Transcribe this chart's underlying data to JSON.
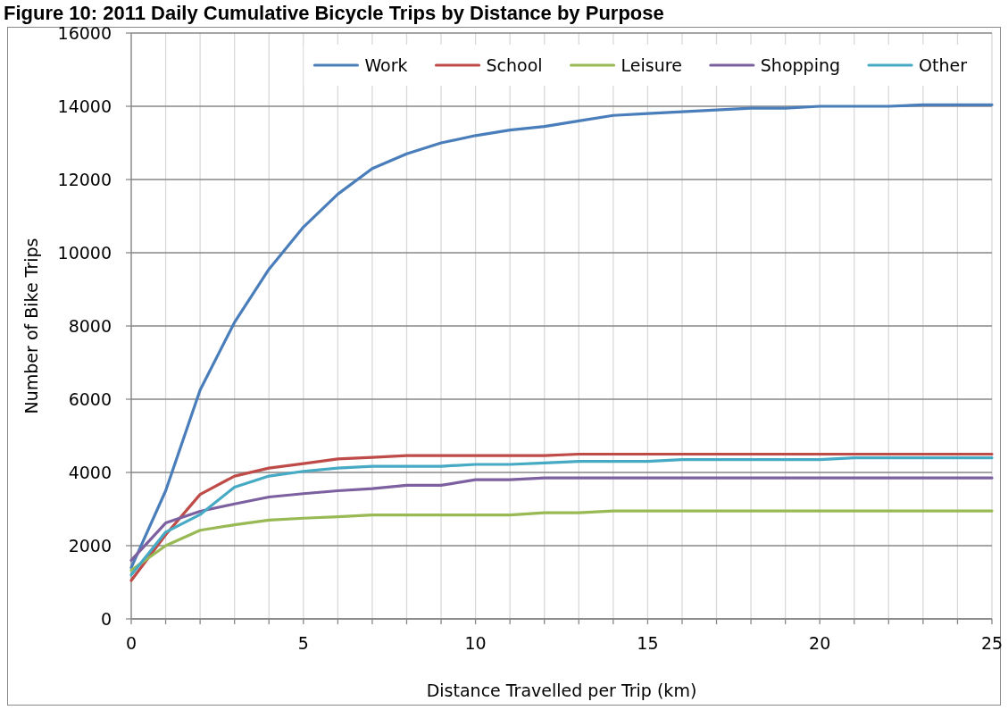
{
  "chart_data": {
    "type": "line",
    "title": "Figure 10: 2011 Daily Cumulative Bicycle Trips by Distance by Purpose",
    "xlabel": "Distance Travelled per Trip (km)",
    "ylabel": "Number of Bike Trips",
    "x": [
      0,
      1,
      2,
      3,
      4,
      5,
      6,
      7,
      8,
      9,
      10,
      11,
      12,
      13,
      14,
      15,
      16,
      17,
      18,
      19,
      20,
      21,
      22,
      23,
      24,
      25
    ],
    "series": [
      {
        "name": "Work",
        "color": "#4a7ebb",
        "values": [
          1400,
          3500,
          6250,
          8100,
          9550,
          10700,
          11600,
          12300,
          12700,
          13000,
          13200,
          13350,
          13450,
          13600,
          13750,
          13800,
          13850,
          13900,
          13950,
          13950,
          14000,
          14000,
          14000,
          14040,
          14040,
          14040
        ]
      },
      {
        "name": "School",
        "color": "#be4b48",
        "values": [
          1050,
          2300,
          3400,
          3900,
          4120,
          4240,
          4370,
          4410,
          4460,
          4460,
          4460,
          4460,
          4460,
          4500,
          4500,
          4500,
          4500,
          4500,
          4500,
          4500,
          4500,
          4500,
          4500,
          4500,
          4500,
          4500
        ]
      },
      {
        "name": "Leisure",
        "color": "#98b954",
        "values": [
          1330,
          2000,
          2420,
          2570,
          2700,
          2750,
          2790,
          2840,
          2840,
          2840,
          2840,
          2840,
          2900,
          2900,
          2950,
          2950,
          2950,
          2950,
          2950,
          2950,
          2950,
          2950,
          2950,
          2950,
          2950,
          2950
        ]
      },
      {
        "name": "Shopping",
        "color": "#7d60a0",
        "values": [
          1600,
          2620,
          2940,
          3140,
          3330,
          3420,
          3500,
          3560,
          3650,
          3650,
          3800,
          3800,
          3850,
          3850,
          3850,
          3850,
          3850,
          3850,
          3850,
          3850,
          3850,
          3850,
          3850,
          3850,
          3850,
          3850
        ]
      },
      {
        "name": "Other",
        "color": "#46aac5",
        "values": [
          1200,
          2370,
          2850,
          3600,
          3900,
          4030,
          4120,
          4170,
          4170,
          4170,
          4220,
          4220,
          4260,
          4300,
          4300,
          4300,
          4350,
          4350,
          4350,
          4350,
          4350,
          4400,
          4400,
          4400,
          4400,
          4400
        ]
      }
    ],
    "xlim": [
      0,
      25
    ],
    "xticks": [
      0,
      {
        "value": 1,
        "label": null
      },
      {
        "value": 2,
        "label": null
      },
      {
        "value": 3,
        "label": null
      },
      {
        "value": 4,
        "label": null
      },
      5,
      {
        "value": 6,
        "label": null
      },
      {
        "value": 7,
        "label": null
      },
      {
        "value": 8,
        "label": null
      },
      {
        "value": 9,
        "label": null
      },
      10,
      {
        "value": 11,
        "label": null
      },
      {
        "value": 12,
        "label": null
      },
      {
        "value": 13,
        "label": null
      },
      {
        "value": 14,
        "label": null
      },
      15,
      {
        "value": 16,
        "label": null
      },
      {
        "value": 17,
        "label": null
      },
      {
        "value": 18,
        "label": null
      },
      {
        "value": 19,
        "label": null
      },
      20,
      {
        "value": 21,
        "label": null
      },
      {
        "value": 22,
        "label": null
      },
      {
        "value": 23,
        "label": null
      },
      {
        "value": 24,
        "label": null
      },
      25
    ],
    "ylim": [
      0,
      16000
    ],
    "yticks": [
      0,
      2000,
      4000,
      6000,
      8000,
      10000,
      12000,
      14000,
      16000
    ],
    "grid": true,
    "legend": "top right"
  }
}
